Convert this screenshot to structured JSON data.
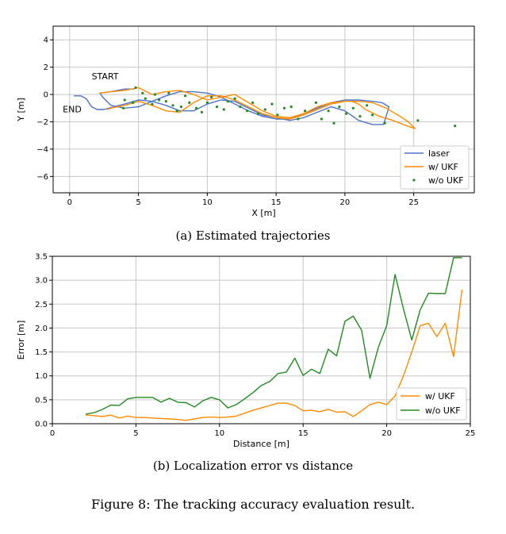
{
  "colors": {
    "laser": "#4f72c9",
    "ukf": "#ff8c00",
    "noukf": "#228b22",
    "grid": "#c8c8c8"
  },
  "chart_data": [
    {
      "type": "line",
      "xlabel": "X [m]",
      "ylabel": "Y [m]",
      "xlim": [
        -1.2,
        29.4
      ],
      "ylim": [
        -7.2,
        5.0
      ],
      "xticks": [
        0,
        5,
        10,
        15,
        20,
        25
      ],
      "yticks": [
        4,
        2,
        0,
        -2,
        -4,
        -6
      ],
      "xtick_labels": [
        "0",
        "5",
        "10",
        "15",
        "20",
        "25"
      ],
      "ytick_labels": [
        "4",
        "2",
        "0",
        "−2",
        "−4",
        "−6"
      ],
      "grid": true,
      "legend": "bottom-right",
      "annotations": [
        {
          "text": "START",
          "x": 1.6,
          "y": 1.1
        },
        {
          "text": "END",
          "x": -0.5,
          "y": -1.3
        }
      ],
      "series": [
        {
          "name": "laser",
          "style": "line",
          "color_key": "laser",
          "points": [
            [
              0.3,
              -0.1
            ],
            [
              0.8,
              -0.1
            ],
            [
              1.2,
              -0.3
            ],
            [
              1.6,
              -0.9
            ],
            [
              2.0,
              -1.1
            ],
            [
              2.5,
              -1.1
            ],
            [
              3.2,
              -0.9
            ],
            [
              4.0,
              -0.7
            ],
            [
              5.0,
              -0.4
            ],
            [
              6.0,
              -0.5
            ],
            [
              7.0,
              -0.8
            ],
            [
              8.0,
              -1.2
            ],
            [
              9.0,
              -1.2
            ],
            [
              10.0,
              -0.7
            ],
            [
              11.0,
              -0.4
            ],
            [
              12.0,
              -0.5
            ],
            [
              13.0,
              -1.0
            ],
            [
              14.0,
              -1.5
            ],
            [
              15.0,
              -1.7
            ],
            [
              16.0,
              -1.9
            ],
            [
              17.0,
              -1.7
            ],
            [
              18.0,
              -1.3
            ],
            [
              19.0,
              -0.9
            ],
            [
              20.0,
              -1.2
            ],
            [
              21.0,
              -1.9
            ],
            [
              22.0,
              -2.2
            ],
            [
              22.8,
              -2.2
            ],
            [
              23.0,
              -1.6
            ],
            [
              23.2,
              -0.9
            ],
            [
              22.7,
              -0.6
            ],
            [
              22.0,
              -0.5
            ],
            [
              21.0,
              -0.4
            ],
            [
              20.0,
              -0.4
            ],
            [
              19.0,
              -0.6
            ],
            [
              18.0,
              -1.0
            ],
            [
              17.0,
              -1.4
            ],
            [
              16.0,
              -1.8
            ],
            [
              15.0,
              -1.8
            ],
            [
              14.0,
              -1.6
            ],
            [
              13.0,
              -1.2
            ],
            [
              12.0,
              -0.7
            ],
            [
              11.0,
              -0.2
            ],
            [
              10.0,
              0.1
            ],
            [
              9.0,
              0.2
            ],
            [
              8.0,
              0.2
            ],
            [
              7.0,
              -0.1
            ],
            [
              6.0,
              -0.5
            ],
            [
              5.0,
              -0.9
            ],
            [
              4.0,
              -1.0
            ],
            [
              3.0,
              -0.8
            ],
            [
              2.4,
              -0.2
            ],
            [
              2.2,
              0.1
            ],
            [
              3.0,
              0.2
            ],
            [
              4.0,
              0.4
            ],
            [
              4.7,
              0.4
            ]
          ]
        },
        {
          "name": "w/ UKF",
          "style": "line",
          "color_key": "ukf",
          "points": [
            [
              2.2,
              0.1
            ],
            [
              3.0,
              0.2
            ],
            [
              4.0,
              0.3
            ],
            [
              5.0,
              0.5
            ],
            [
              6.0,
              0.0
            ],
            [
              7.0,
              0.2
            ],
            [
              8.0,
              0.3
            ],
            [
              9.0,
              0.0
            ],
            [
              10.0,
              -0.4
            ],
            [
              11.0,
              -0.2
            ],
            [
              12.0,
              0.0
            ],
            [
              13.0,
              -0.6
            ],
            [
              14.0,
              -1.2
            ],
            [
              15.0,
              -1.6
            ],
            [
              16.0,
              -1.7
            ],
            [
              17.0,
              -1.4
            ],
            [
              18.0,
              -0.9
            ],
            [
              19.0,
              -0.6
            ],
            [
              20.0,
              -0.5
            ],
            [
              21.0,
              -0.5
            ],
            [
              22.0,
              -0.6
            ],
            [
              23.0,
              -1.0
            ],
            [
              24.0,
              -1.6
            ],
            [
              24.6,
              -2.0
            ],
            [
              25.1,
              -2.5
            ],
            [
              24.5,
              -2.3
            ],
            [
              23.5,
              -1.9
            ],
            [
              22.5,
              -1.6
            ],
            [
              21.5,
              -1.1
            ],
            [
              21.0,
              -0.7
            ],
            [
              20.5,
              -0.5
            ],
            [
              20.0,
              -0.5
            ],
            [
              19.0,
              -0.7
            ],
            [
              18.0,
              -1.1
            ],
            [
              17.0,
              -1.5
            ],
            [
              16.0,
              -1.8
            ],
            [
              15.0,
              -1.7
            ],
            [
              14.0,
              -1.4
            ],
            [
              13.0,
              -0.9
            ],
            [
              12.0,
              -0.4
            ],
            [
              11.0,
              -0.1
            ],
            [
              10.0,
              -0.1
            ],
            [
              9.0,
              -0.6
            ],
            [
              8.0,
              -1.3
            ],
            [
              7.0,
              -1.2
            ],
            [
              6.0,
              -0.8
            ],
            [
              5.0,
              -0.5
            ],
            [
              4.0,
              -0.8
            ],
            [
              3.0,
              -1.0
            ],
            [
              2.7,
              -1.1
            ]
          ]
        },
        {
          "name": "w/o UKF",
          "style": "scatter",
          "color_key": "noukf",
          "points": [
            [
              3.9,
              -1.0
            ],
            [
              4.0,
              -0.4
            ],
            [
              4.6,
              -0.6
            ],
            [
              4.8,
              0.5
            ],
            [
              5.3,
              0.1
            ],
            [
              5.5,
              -0.3
            ],
            [
              6.0,
              -0.7
            ],
            [
              6.2,
              0.0
            ],
            [
              6.5,
              -0.4
            ],
            [
              7.0,
              -0.5
            ],
            [
              7.2,
              0.1
            ],
            [
              7.5,
              -0.8
            ],
            [
              7.8,
              -1.2
            ],
            [
              8.1,
              -0.9
            ],
            [
              8.4,
              -0.1
            ],
            [
              8.7,
              -0.6
            ],
            [
              9.2,
              -1.0
            ],
            [
              9.6,
              -1.3
            ],
            [
              10.0,
              -0.6
            ],
            [
              10.3,
              -0.2
            ],
            [
              10.7,
              -0.9
            ],
            [
              11.2,
              -1.1
            ],
            [
              11.5,
              -0.5
            ],
            [
              12.0,
              -0.3
            ],
            [
              12.4,
              -0.9
            ],
            [
              12.9,
              -1.2
            ],
            [
              13.3,
              -0.6
            ],
            [
              13.7,
              -1.4
            ],
            [
              14.2,
              -1.1
            ],
            [
              14.7,
              -0.7
            ],
            [
              15.1,
              -1.5
            ],
            [
              15.6,
              -1.0
            ],
            [
              16.1,
              -0.9
            ],
            [
              16.6,
              -1.8
            ],
            [
              17.1,
              -1.2
            ],
            [
              17.9,
              -0.6
            ],
            [
              18.3,
              -1.8
            ],
            [
              18.8,
              -1.2
            ],
            [
              19.2,
              -2.1
            ],
            [
              19.6,
              -0.9
            ],
            [
              20.1,
              -1.4
            ],
            [
              20.6,
              -1.0
            ],
            [
              21.1,
              -1.6
            ],
            [
              21.6,
              -0.8
            ],
            [
              22.0,
              -1.5
            ],
            [
              22.9,
              -2.1
            ],
            [
              25.3,
              -1.9
            ],
            [
              28.0,
              -2.3
            ]
          ]
        }
      ]
    },
    {
      "type": "line",
      "xlabel": "Distance [m]",
      "ylabel": "Error [m]",
      "xlim": [
        0,
        25
      ],
      "ylim": [
        0,
        3.5
      ],
      "xticks": [
        0,
        5,
        10,
        15,
        20,
        25
      ],
      "yticks": [
        0.0,
        0.5,
        1.0,
        1.5,
        2.0,
        2.5,
        3.0,
        3.5
      ],
      "xtick_labels": [
        "0",
        "5",
        "10",
        "15",
        "20",
        "25"
      ],
      "ytick_labels": [
        "0.0",
        "0.5",
        "1.0",
        "1.5",
        "2.0",
        "2.5",
        "3.0",
        "3.5"
      ],
      "grid": true,
      "legend": "bottom-right",
      "series": [
        {
          "name": "w/ UKF",
          "color_key": "ukf",
          "x": [
            2.0,
            2.5,
            3.0,
            3.5,
            4.0,
            4.5,
            5.0,
            5.5,
            6.0,
            6.5,
            7.0,
            7.5,
            8.0,
            8.5,
            9.0,
            9.5,
            10.0,
            10.5,
            11.0,
            11.5,
            12.0,
            12.5,
            13.0,
            13.5,
            14.0,
            14.5,
            15.0,
            15.5,
            16.0,
            16.5,
            17.0,
            17.5,
            18.0,
            18.5,
            19.0,
            19.5,
            20.0,
            20.5,
            21.0,
            21.5,
            22.0,
            22.5,
            23.0,
            23.5,
            24.0,
            24.5
          ],
          "values": [
            0.18,
            0.17,
            0.15,
            0.18,
            0.12,
            0.16,
            0.13,
            0.13,
            0.12,
            0.11,
            0.1,
            0.09,
            0.07,
            0.1,
            0.13,
            0.14,
            0.13,
            0.14,
            0.16,
            0.22,
            0.28,
            0.33,
            0.38,
            0.43,
            0.43,
            0.38,
            0.27,
            0.28,
            0.25,
            0.3,
            0.24,
            0.25,
            0.15,
            0.27,
            0.4,
            0.45,
            0.4,
            0.58,
            1.0,
            1.5,
            2.05,
            2.1,
            1.82,
            2.1,
            1.4,
            2.8
          ]
        },
        {
          "name": "w/o UKF",
          "color_key": "noukf",
          "x": [
            2.0,
            2.5,
            3.0,
            3.5,
            4.0,
            4.5,
            5.0,
            5.5,
            6.0,
            6.5,
            7.0,
            7.5,
            8.0,
            8.5,
            9.0,
            9.5,
            10.0,
            10.5,
            11.0,
            11.5,
            12.0,
            12.5,
            13.0,
            13.5,
            14.0,
            14.5,
            15.0,
            15.5,
            16.0,
            16.5,
            17.0,
            17.5,
            18.0,
            18.5,
            19.0,
            19.5,
            20.0,
            20.5,
            21.0,
            21.5,
            22.0,
            22.5,
            23.0,
            23.5,
            24.0,
            24.5
          ],
          "values": [
            0.2,
            0.23,
            0.3,
            0.39,
            0.38,
            0.52,
            0.55,
            0.55,
            0.55,
            0.45,
            0.53,
            0.45,
            0.44,
            0.35,
            0.48,
            0.55,
            0.5,
            0.33,
            0.4,
            0.52,
            0.65,
            0.8,
            0.88,
            1.05,
            1.08,
            1.37,
            1.01,
            1.14,
            1.05,
            1.56,
            1.42,
            2.14,
            2.25,
            1.95,
            0.95,
            1.6,
            2.05,
            3.12,
            2.4,
            1.75,
            2.38,
            2.73,
            2.72,
            2.72,
            3.47,
            3.47
          ]
        }
      ]
    }
  ],
  "legend1": {
    "laser": "laser",
    "ukf": "w/ UKF",
    "noukf": "w/o UKF"
  },
  "legend2": {
    "ukf": "w/ UKF",
    "noukf": "w/o UKF"
  },
  "captions": {
    "a": "(a) Estimated trajectories",
    "b": "(b) Localization error vs distance",
    "figure": "Figure 8: The tracking accuracy evaluation result."
  }
}
